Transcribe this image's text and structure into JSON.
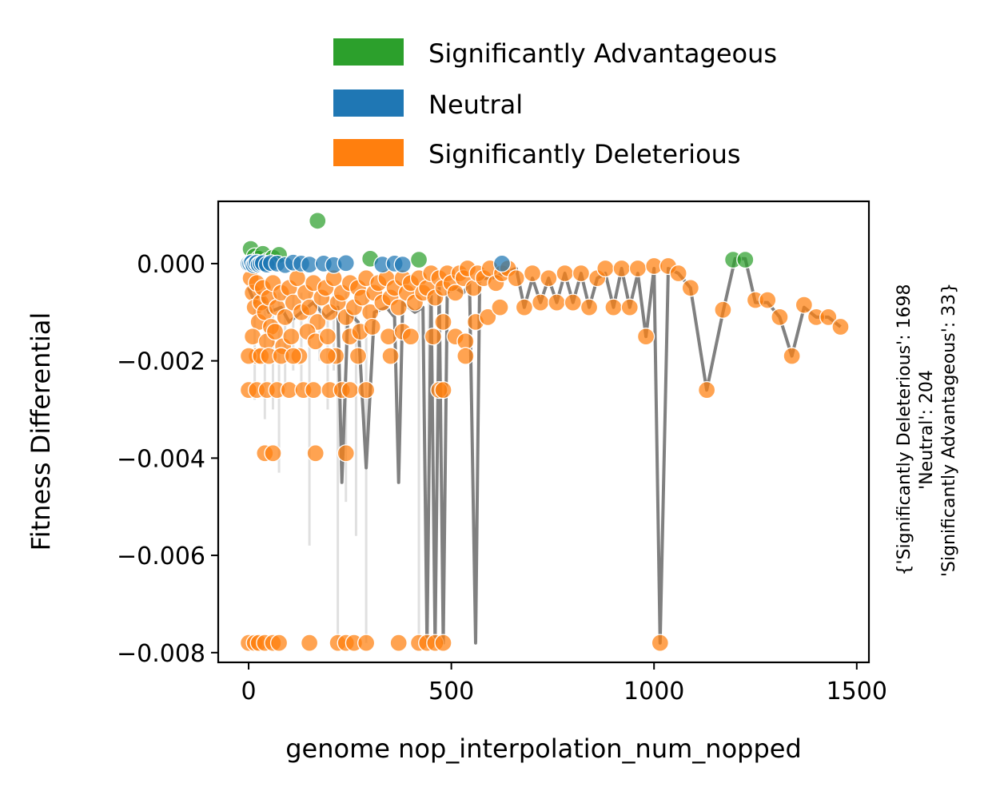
{
  "chart_data": {
    "type": "scatter",
    "title": "",
    "xlabel": "genome nop_interpolation_num_nopped",
    "ylabel": "Fitness Differential",
    "xlim": [
      -75,
      1530
    ],
    "ylim": [
      -0.0082,
      0.00128
    ],
    "xticks": [
      0,
      500,
      1000,
      1500
    ],
    "xtick_labels": [
      "0",
      "500",
      "1000",
      "1500"
    ],
    "yticks": [
      0.0,
      -0.002,
      -0.004,
      -0.006,
      -0.008
    ],
    "ytick_labels": [
      "0.000",
      "−0.002",
      "−0.004",
      "−0.006",
      "−0.008"
    ],
    "grid": false,
    "legend": {
      "placement": "top-center",
      "entries": [
        {
          "label": "Significantly Advantageous",
          "color": "#2ca02c"
        },
        {
          "label": "Neutral",
          "color": "#1f77b4"
        },
        {
          "label": "Significantly Deleterious",
          "color": "#ff7f0e"
        }
      ]
    },
    "side_annotation": {
      "line1": "{'Significantly Deleterious': 1698",
      "line2": "'Neutral': 204",
      "line3": "'Significantly Advantageous': 33}"
    },
    "line_color": "#808080",
    "faint_line_color": "#e0e0e0",
    "trend_line": [
      [
        0,
        -0.0005
      ],
      [
        15,
        -0.0008
      ],
      [
        30,
        -0.0006
      ],
      [
        50,
        -0.001
      ],
      [
        80,
        -0.0009
      ],
      [
        100,
        -0.0012
      ],
      [
        130,
        -0.001
      ],
      [
        160,
        -0.0008
      ],
      [
        190,
        -0.0011
      ],
      [
        220,
        -0.0009
      ],
      [
        230,
        -0.0045
      ],
      [
        245,
        -0.001
      ],
      [
        270,
        -0.0012
      ],
      [
        290,
        -0.0042
      ],
      [
        310,
        -0.001
      ],
      [
        340,
        -0.0009
      ],
      [
        360,
        -0.0011
      ],
      [
        370,
        -0.0045
      ],
      [
        380,
        -0.0008
      ],
      [
        410,
        -0.001
      ],
      [
        430,
        -0.0009
      ],
      [
        440,
        -0.0078
      ],
      [
        450,
        -0.0006
      ],
      [
        460,
        -0.0078
      ],
      [
        470,
        -0.0005
      ],
      [
        480,
        -0.0078
      ],
      [
        490,
        -0.0006
      ],
      [
        510,
        -0.0005
      ],
      [
        530,
        -0.0006
      ],
      [
        545,
        -0.0004
      ],
      [
        560,
        -0.0078
      ],
      [
        570,
        -0.0003
      ],
      [
        600,
        -0.0003
      ],
      [
        630,
        -0.0002
      ],
      [
        660,
        -0.0001
      ],
      [
        680,
        -0.0009
      ],
      [
        700,
        -0.0003
      ],
      [
        720,
        -0.0008
      ],
      [
        740,
        -0.0003
      ],
      [
        760,
        -0.0008
      ],
      [
        780,
        -0.0002
      ],
      [
        800,
        -0.0008
      ],
      [
        820,
        -0.0002
      ],
      [
        840,
        -0.0009
      ],
      [
        860,
        -0.0003
      ],
      [
        880,
        -0.0002
      ],
      [
        900,
        -0.0009
      ],
      [
        920,
        -0.0001
      ],
      [
        940,
        -0.0009
      ],
      [
        960,
        -0.0002
      ],
      [
        980,
        -0.0015
      ],
      [
        1000,
        -0.0001
      ],
      [
        1015,
        -0.0078
      ],
      [
        1035,
        -0.0001
      ],
      [
        1060,
        -0.0002
      ],
      [
        1090,
        -0.0005
      ],
      [
        1130,
        -0.0026
      ],
      [
        1170,
        -0.001
      ],
      [
        1200,
        0.0001
      ],
      [
        1225,
        0.0001
      ],
      [
        1250,
        -0.0008
      ],
      [
        1280,
        -0.0008
      ],
      [
        1310,
        -0.0011
      ],
      [
        1340,
        -0.0019
      ],
      [
        1370,
        -0.0009
      ],
      [
        1400,
        -0.0011
      ],
      [
        1430,
        -0.0011
      ],
      [
        1460,
        -0.0013
      ]
    ],
    "faint_spikes": [
      [
        15,
        -0.0028
      ],
      [
        40,
        -0.0032
      ],
      [
        60,
        -0.003
      ],
      [
        75,
        -0.0043
      ],
      [
        90,
        -0.0026
      ],
      [
        110,
        -0.0022
      ],
      [
        130,
        -0.0026
      ],
      [
        150,
        -0.0058
      ],
      [
        175,
        -0.002
      ],
      [
        195,
        -0.003
      ],
      [
        210,
        -0.0022
      ],
      [
        220,
        -0.0078
      ],
      [
        240,
        -0.0049
      ],
      [
        265,
        -0.0056
      ],
      [
        290,
        -0.0078
      ],
      [
        420,
        -0.0078
      ],
      [
        445,
        -0.004
      ]
    ],
    "series": [
      {
        "name": "Significantly Advantageous",
        "color": "#2ca02c",
        "points": [
          [
            5,
            0.0003
          ],
          [
            15,
            0.00015
          ],
          [
            25,
            0.0001
          ],
          [
            35,
            0.0002
          ],
          [
            45,
            5e-05
          ],
          [
            60,
            0.00012
          ],
          [
            75,
            0.00018
          ],
          [
            170,
            0.00088
          ],
          [
            300,
            0.0001
          ],
          [
            420,
            8e-05
          ],
          [
            1195,
            8e-05
          ],
          [
            1225,
            8e-05
          ]
        ]
      },
      {
        "name": "Neutral",
        "color": "#1f77b4",
        "points": [
          [
            0,
            0.0
          ],
          [
            4,
            0.0
          ],
          [
            8,
            2e-05
          ],
          [
            12,
            -3e-05
          ],
          [
            16,
            0.0
          ],
          [
            20,
            2e-05
          ],
          [
            25,
            -2e-05
          ],
          [
            30,
            0.0
          ],
          [
            35,
            1e-05
          ],
          [
            45,
            -2e-05
          ],
          [
            55,
            1e-05
          ],
          [
            70,
            0.0
          ],
          [
            90,
            -3e-05
          ],
          [
            110,
            2e-05
          ],
          [
            130,
            0.0
          ],
          [
            150,
            -2e-05
          ],
          [
            185,
            0.0
          ],
          [
            210,
            -3e-05
          ],
          [
            240,
            1e-05
          ],
          [
            330,
            -2e-05
          ],
          [
            360,
            0.0
          ],
          [
            380,
            -2e-05
          ],
          [
            625,
            0.0
          ]
        ]
      },
      {
        "name": "Significantly Deleterious",
        "color": "#ff7f0e",
        "points": [
          [
            5,
            -0.0003
          ],
          [
            10,
            -0.0006
          ],
          [
            15,
            -0.0009
          ],
          [
            20,
            -0.0004
          ],
          [
            25,
            -0.0012
          ],
          [
            30,
            -0.0008
          ],
          [
            35,
            -0.0005
          ],
          [
            40,
            -0.001
          ],
          [
            50,
            -0.0007
          ],
          [
            55,
            -0.0013
          ],
          [
            60,
            -0.0004
          ],
          [
            70,
            -0.0009
          ],
          [
            80,
            -0.0006
          ],
          [
            90,
            -0.0011
          ],
          [
            100,
            -0.0005
          ],
          [
            110,
            -0.0008
          ],
          [
            120,
            -0.0003
          ],
          [
            130,
            -0.001
          ],
          [
            140,
            -0.0006
          ],
          [
            150,
            -0.0009
          ],
          [
            160,
            -0.0004
          ],
          [
            170,
            -0.0012
          ],
          [
            180,
            -0.0007
          ],
          [
            190,
            -0.0005
          ],
          [
            200,
            -0.001
          ],
          [
            210,
            -0.0003
          ],
          [
            220,
            -0.0008
          ],
          [
            230,
            -0.0006
          ],
          [
            240,
            -0.0011
          ],
          [
            250,
            -0.0004
          ],
          [
            260,
            -0.0009
          ],
          [
            270,
            -0.0005
          ],
          [
            280,
            -0.0007
          ],
          [
            290,
            -0.0003
          ],
          [
            300,
            -0.001
          ],
          [
            310,
            -0.0006
          ],
          [
            320,
            -0.0004
          ],
          [
            330,
            -0.0008
          ],
          [
            340,
            -0.0003
          ],
          [
            350,
            -0.0007
          ],
          [
            360,
            -0.0005
          ],
          [
            370,
            -0.0009
          ],
          [
            380,
            -0.0003
          ],
          [
            390,
            -0.0006
          ],
          [
            400,
            -0.0004
          ],
          [
            410,
            -0.0008
          ],
          [
            420,
            -0.0003
          ],
          [
            430,
            -0.0006
          ],
          [
            440,
            -0.0005
          ],
          [
            450,
            -0.0002
          ],
          [
            460,
            -0.0007
          ],
          [
            470,
            -0.0003
          ],
          [
            480,
            -0.0005
          ],
          [
            490,
            -0.0002
          ],
          [
            500,
            -0.0004
          ],
          [
            510,
            -0.0006
          ],
          [
            520,
            -0.0002
          ],
          [
            530,
            -0.0003
          ],
          [
            540,
            -0.0001
          ],
          [
            555,
            -0.0005
          ],
          [
            565,
            -0.0002
          ],
          [
            580,
            -0.0003
          ],
          [
            595,
            -0.0001
          ],
          [
            610,
            -0.0004
          ],
          [
            625,
            -0.0002
          ],
          [
            640,
            -0.0001
          ],
          [
            660,
            -0.0003
          ],
          [
            680,
            -0.0009
          ],
          [
            700,
            -0.0002
          ],
          [
            720,
            -0.0008
          ],
          [
            740,
            -0.0003
          ],
          [
            760,
            -0.0008
          ],
          [
            780,
            -0.0002
          ],
          [
            800,
            -0.0008
          ],
          [
            820,
            -0.0002
          ],
          [
            840,
            -0.0009
          ],
          [
            860,
            -0.0003
          ],
          [
            880,
            -0.0001
          ],
          [
            900,
            -0.0009
          ],
          [
            920,
            -0.0001
          ],
          [
            940,
            -0.0009
          ],
          [
            960,
            -0.0001
          ],
          [
            980,
            -0.0015
          ],
          [
            1000,
            -5e-05
          ],
          [
            1035,
            -5e-05
          ],
          [
            1060,
            -0.0002
          ],
          [
            1090,
            -0.0005
          ],
          [
            1130,
            -0.0026
          ],
          [
            1170,
            -0.00095
          ],
          [
            1250,
            -0.00075
          ],
          [
            1280,
            -0.00075
          ],
          [
            1310,
            -0.0011
          ],
          [
            1340,
            -0.0019
          ],
          [
            1370,
            -0.00085
          ],
          [
            1400,
            -0.0011
          ],
          [
            1430,
            -0.0011
          ],
          [
            1460,
            -0.0013
          ],
          [
            10,
            -0.0015
          ],
          [
            20,
            -0.0019
          ],
          [
            45,
            -0.0016
          ],
          [
            65,
            -0.0014
          ],
          [
            85,
            -0.0017
          ],
          [
            105,
            -0.0015
          ],
          [
            125,
            -0.0019
          ],
          [
            145,
            -0.0014
          ],
          [
            165,
            -0.0016
          ],
          [
            195,
            -0.0015
          ],
          [
            215,
            -0.0019
          ],
          [
            250,
            -0.0015
          ],
          [
            275,
            -0.0014
          ],
          [
            305,
            -0.0013
          ],
          [
            345,
            -0.0015
          ],
          [
            380,
            -0.0014
          ],
          [
            400,
            -0.0015
          ],
          [
            455,
            -0.0015
          ],
          [
            480,
            -0.0012
          ],
          [
            510,
            -0.0015
          ],
          [
            535,
            -0.0016
          ],
          [
            560,
            -0.0012
          ],
          [
            590,
            -0.0011
          ],
          [
            620,
            -0.0009
          ],
          [
            0,
            -0.0019
          ],
          [
            30,
            -0.0019
          ],
          [
            50,
            -0.0019
          ],
          [
            80,
            -0.0019
          ],
          [
            110,
            -0.0019
          ],
          [
            195,
            -0.0019
          ],
          [
            270,
            -0.0019
          ],
          [
            350,
            -0.0019
          ],
          [
            535,
            -0.0019
          ],
          [
            0,
            -0.0026
          ],
          [
            20,
            -0.0026
          ],
          [
            45,
            -0.0026
          ],
          [
            70,
            -0.0026
          ],
          [
            100,
            -0.0026
          ],
          [
            135,
            -0.0026
          ],
          [
            160,
            -0.0026
          ],
          [
            200,
            -0.0026
          ],
          [
            230,
            -0.0026
          ],
          [
            250,
            -0.0026
          ],
          [
            290,
            -0.0026
          ],
          [
            470,
            -0.0026
          ],
          [
            480,
            -0.0026
          ],
          [
            40,
            -0.0039
          ],
          [
            60,
            -0.0039
          ],
          [
            165,
            -0.0039
          ],
          [
            240,
            -0.0039
          ],
          [
            0,
            -0.0078
          ],
          [
            15,
            -0.0078
          ],
          [
            25,
            -0.0078
          ],
          [
            40,
            -0.0078
          ],
          [
            60,
            -0.0078
          ],
          [
            75,
            -0.0078
          ],
          [
            150,
            -0.0078
          ],
          [
            220,
            -0.0078
          ],
          [
            240,
            -0.0078
          ],
          [
            260,
            -0.0078
          ],
          [
            290,
            -0.0078
          ],
          [
            370,
            -0.0078
          ],
          [
            420,
            -0.0078
          ],
          [
            440,
            -0.0078
          ],
          [
            460,
            -0.0078
          ],
          [
            480,
            -0.0078
          ],
          [
            1015,
            -0.0078
          ]
        ]
      }
    ]
  }
}
